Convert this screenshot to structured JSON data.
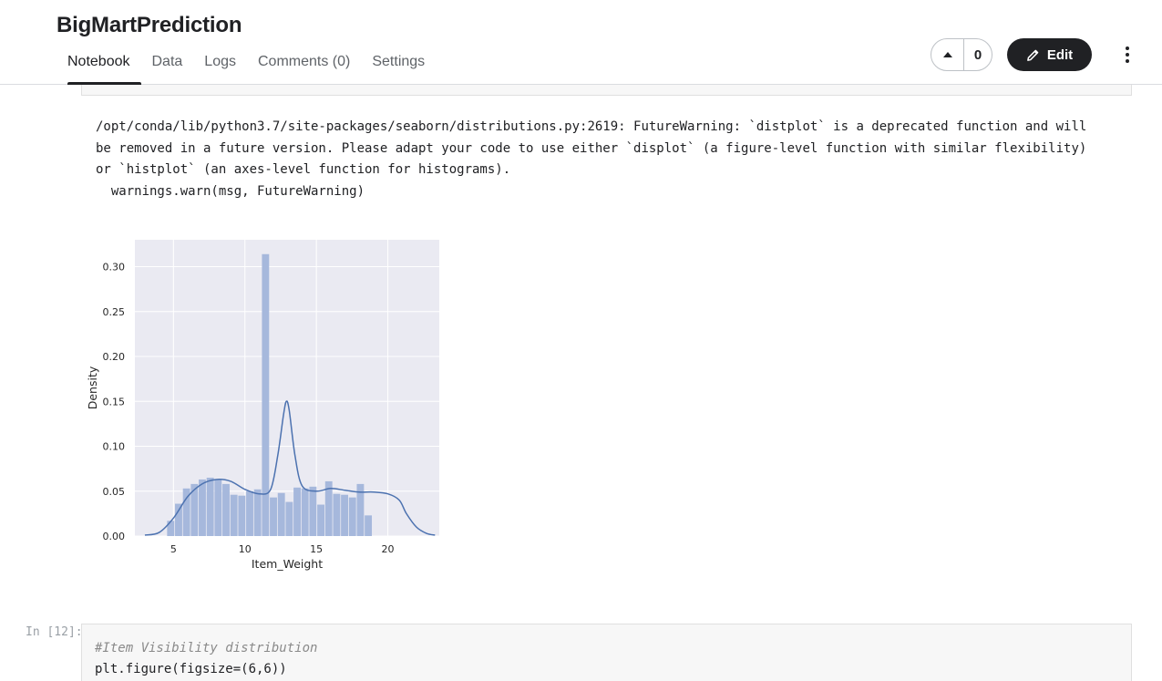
{
  "notebook": {
    "title": "BigMartPrediction",
    "tabs": [
      {
        "label": "Notebook",
        "active": true
      },
      {
        "label": "Data"
      },
      {
        "label": "Logs"
      },
      {
        "label": "Comments (0)"
      },
      {
        "label": "Settings"
      }
    ],
    "vote_count": "0",
    "edit_label": "Edit",
    "icons": {
      "upvote": "caret-up-icon",
      "edit": "pencil-icon",
      "more": "more-vertical-icon"
    }
  },
  "output": {
    "warning_lines": [
      "/opt/conda/lib/python3.7/site-packages/seaborn/distributions.py:2619: FutureWarning: `distplot` is a deprecated function and will",
      "be removed in a future version. Please adapt your code to use either `displot` (a figure-level function with similar flexibility)",
      "or `histplot` (an axes-level function for histograms).",
      "  warnings.warn(msg, FutureWarning)"
    ]
  },
  "chart_data": {
    "type": "bar",
    "title": "",
    "xlabel": "Item_Weight",
    "ylabel": "Density",
    "xlim": [
      2.3,
      23.6
    ],
    "ylim": [
      0,
      0.33
    ],
    "xticks": [
      5,
      10,
      15,
      20
    ],
    "yticks": [
      "0.00",
      "0.05",
      "0.10",
      "0.15",
      "0.20",
      "0.25",
      "0.30"
    ],
    "grid": true,
    "bins": {
      "x_start": 4.555,
      "bin_width": 0.553,
      "values": [
        0.017,
        0.036,
        0.053,
        0.058,
        0.063,
        0.065,
        0.063,
        0.058,
        0.046,
        0.045,
        0.05,
        0.052,
        0.314,
        0.043,
        0.048,
        0.038,
        0.054,
        0.053,
        0.055,
        0.035,
        0.061,
        0.047,
        0.046,
        0.043,
        0.058,
        0.023
      ]
    },
    "kde": {
      "x": [
        3.0,
        4.0,
        5.0,
        6.0,
        7.0,
        8.0,
        9.0,
        10.0,
        11.0,
        11.8,
        12.3,
        12.7,
        12.9,
        13.1,
        13.5,
        14.0,
        15.0,
        16.0,
        17.0,
        18.0,
        19.0,
        20.0,
        20.8,
        21.3,
        22.0,
        22.7,
        23.3
      ],
      "y": [
        0.001,
        0.004,
        0.02,
        0.044,
        0.058,
        0.063,
        0.061,
        0.052,
        0.047,
        0.052,
        0.09,
        0.135,
        0.15,
        0.14,
        0.09,
        0.056,
        0.05,
        0.053,
        0.051,
        0.049,
        0.049,
        0.047,
        0.04,
        0.025,
        0.01,
        0.003,
        0.001
      ]
    },
    "colors": {
      "bar": "#a6b8dc",
      "kde": "#4c72b0",
      "axes_bg": "#eaeaf2",
      "grid": "#ffffff"
    }
  },
  "next_cell": {
    "prompt": "In [12]:",
    "comment": "#Item Visibility distribution",
    "code": "plt.figure(figsize=(6,6))"
  }
}
